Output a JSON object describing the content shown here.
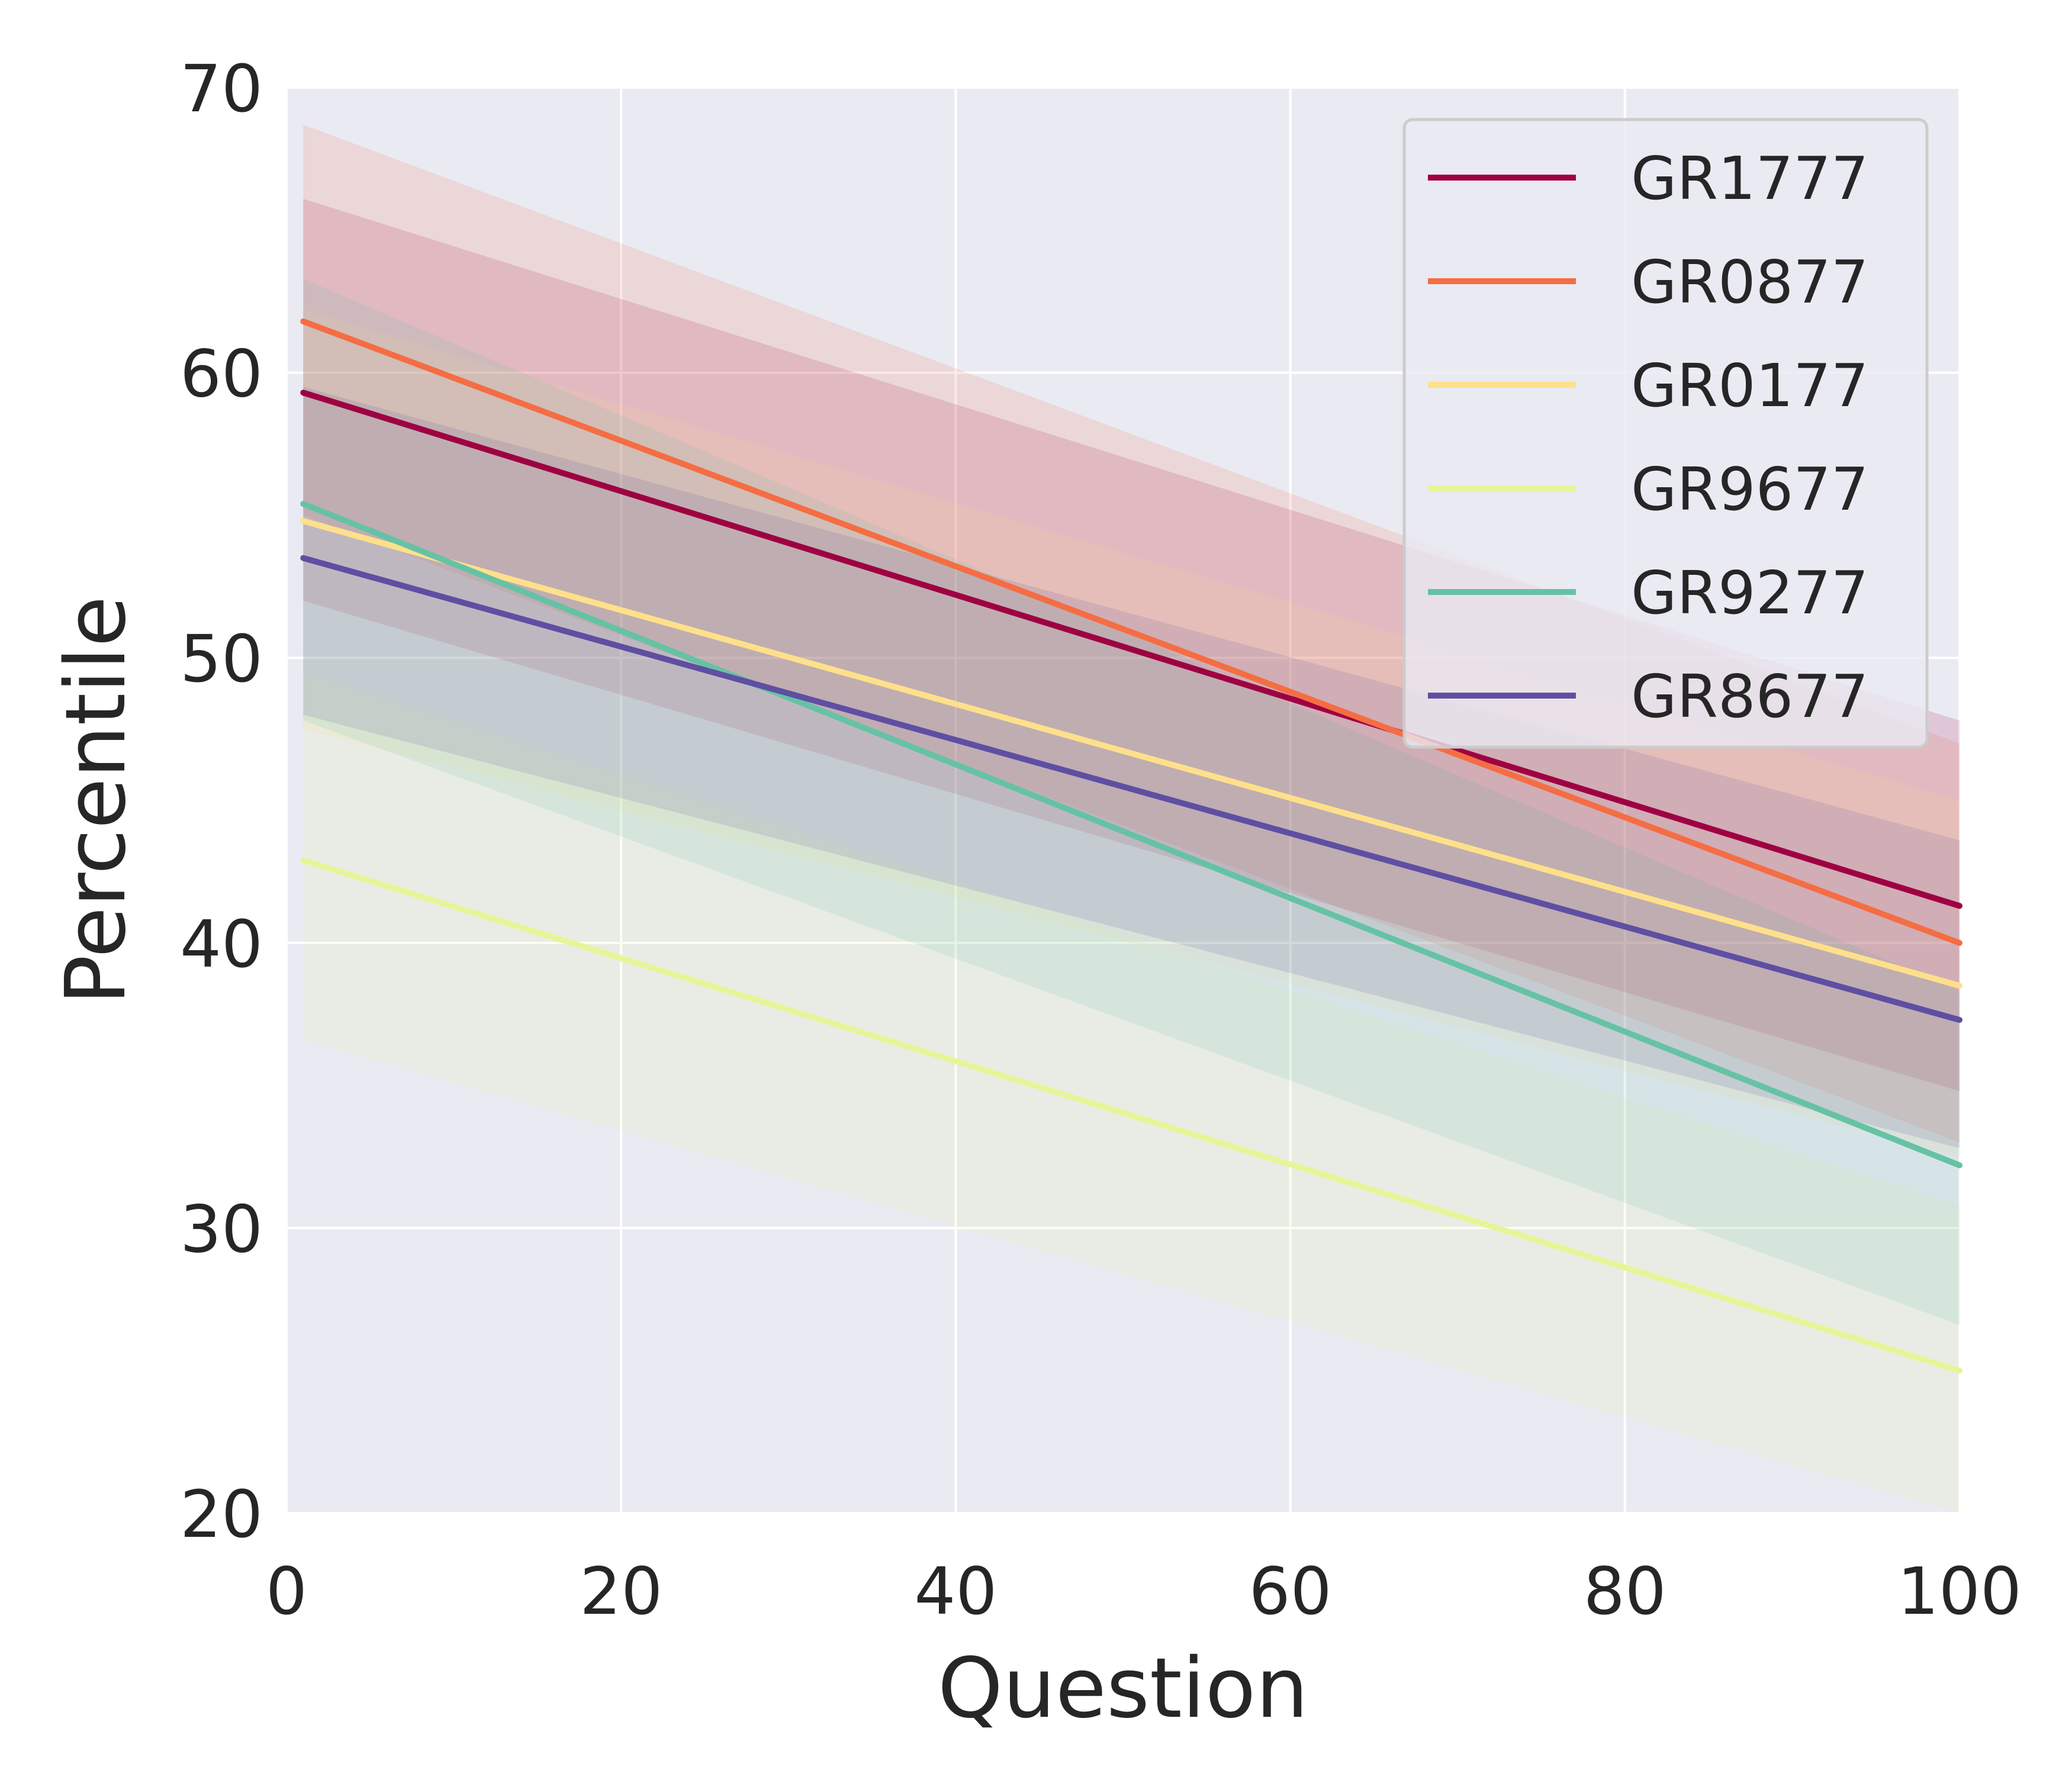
{
  "chart_data": {
    "type": "line",
    "xlabel": "Question",
    "ylabel": "Percentile",
    "xlim": [
      0,
      100
    ],
    "ylim": [
      20,
      70
    ],
    "xticks": [
      "0",
      "20",
      "40",
      "60",
      "80",
      "100"
    ],
    "yticks": [
      "20",
      "30",
      "40",
      "50",
      "60",
      "70"
    ],
    "xtick_values": [
      0,
      20,
      40,
      60,
      80,
      100
    ],
    "ytick_values": [
      20,
      30,
      40,
      50,
      60,
      70
    ],
    "grid": true,
    "legend_position": "top-right",
    "background_color": "#eaeaf2",
    "series": [
      {
        "name": "GR1777",
        "color": "#9e0142",
        "x": [
          1,
          100
        ],
        "y": [
          59.3,
          41.3
        ],
        "ci_lower": [
          52.0,
          34.8
        ],
        "ci_upper": [
          66.1,
          47.8
        ]
      },
      {
        "name": "GR0877",
        "color": "#f46d43",
        "x": [
          1,
          100
        ],
        "y": [
          61.8,
          40.0
        ],
        "ci_lower": [
          55.0,
          33.0
        ],
        "ci_upper": [
          68.7,
          47.0
        ]
      },
      {
        "name": "GR0177",
        "color": "#fee08b",
        "x": [
          1,
          100
        ],
        "y": [
          54.8,
          38.5
        ],
        "ci_lower": [
          47.5,
          32.5
        ],
        "ci_upper": [
          62.2,
          45.0
        ]
      },
      {
        "name": "GR9677",
        "color": "#e6f598",
        "x": [
          1,
          100
        ],
        "y": [
          42.9,
          25.0
        ],
        "ci_lower": [
          36.6,
          20.0
        ],
        "ci_upper": [
          49.5,
          30.8
        ]
      },
      {
        "name": "GR9277",
        "color": "#66c2a5",
        "x": [
          1,
          100
        ],
        "y": [
          55.4,
          32.2
        ],
        "ci_lower": [
          47.8,
          26.6
        ],
        "ci_upper": [
          63.3,
          38.3
        ]
      },
      {
        "name": "GR8677",
        "color": "#5e4fa2",
        "x": [
          1,
          100
        ],
        "y": [
          53.5,
          37.3
        ],
        "ci_lower": [
          48.0,
          32.8
        ],
        "ci_upper": [
          59.5,
          43.6
        ]
      }
    ]
  }
}
